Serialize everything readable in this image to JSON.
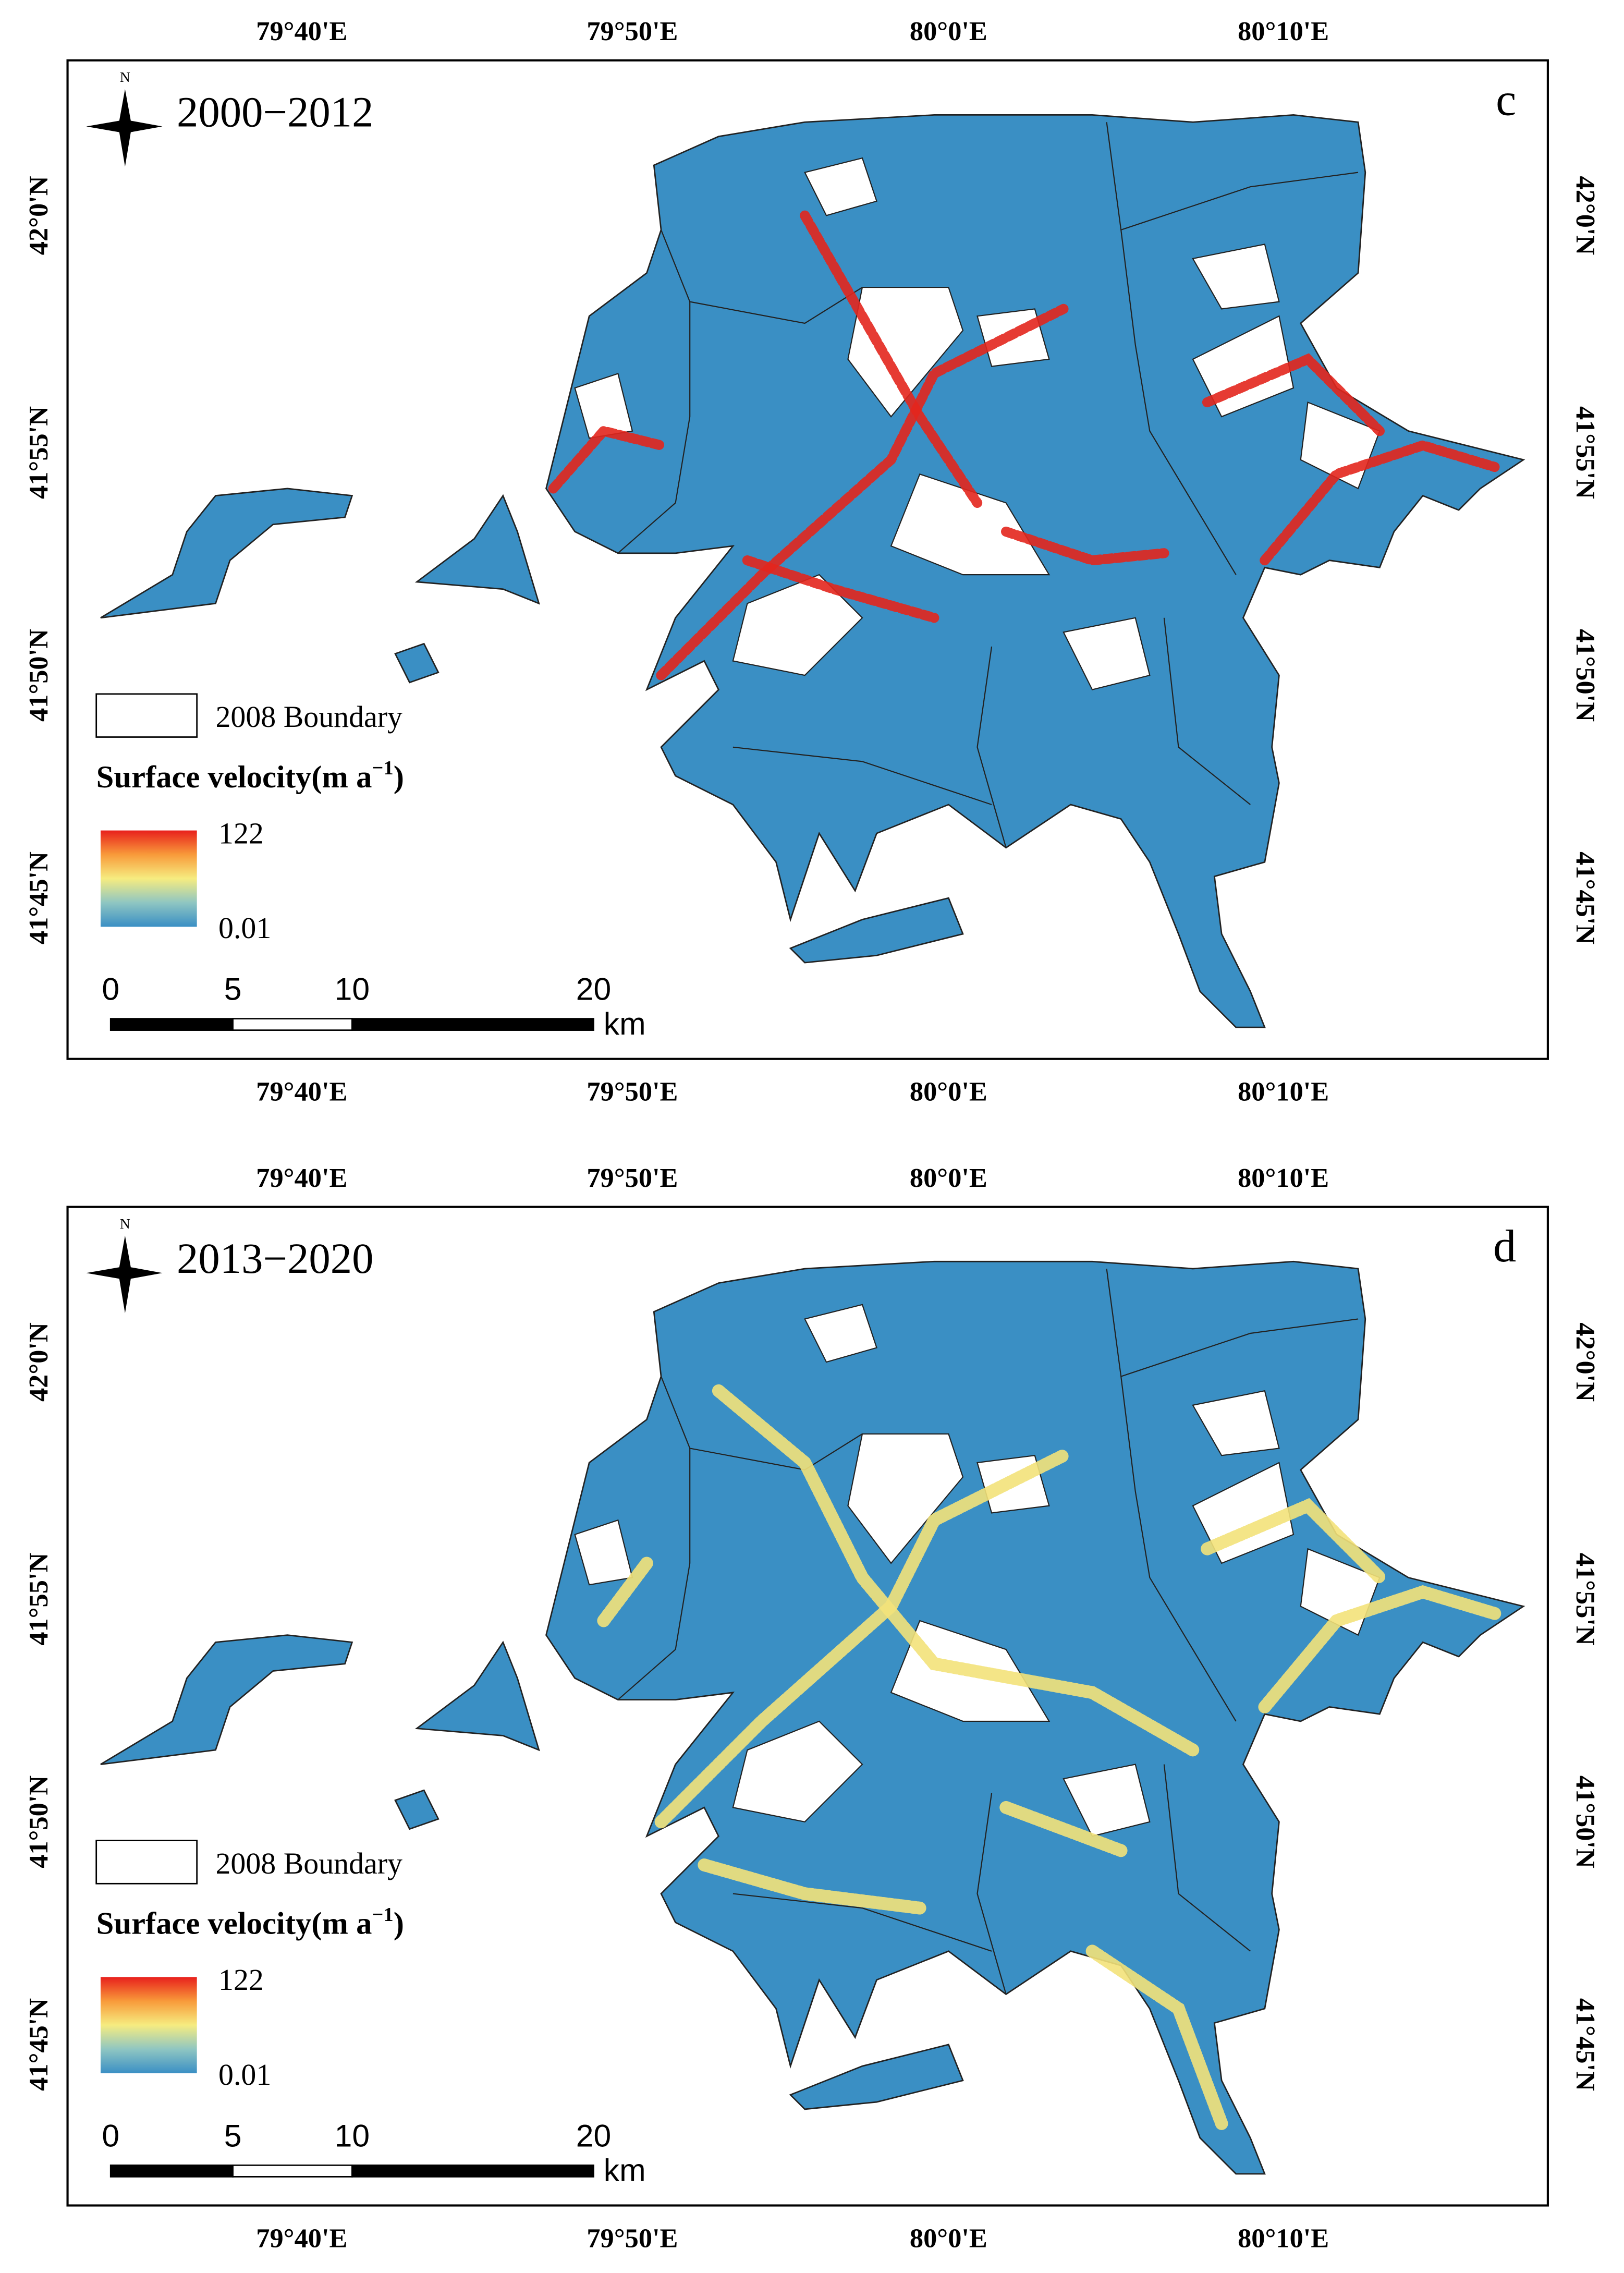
{
  "panels": [
    {
      "label": "c",
      "period": "2000−2012",
      "north": "N",
      "legend": {
        "boundary": "2008 Boundary",
        "title": "Surface velocity(m a",
        "title_sup": "−1",
        "title_close": ")",
        "max": "122",
        "min": "0.01"
      },
      "scale": {
        "ticks": [
          "0",
          "5",
          "10",
          "20"
        ],
        "unit": "km"
      },
      "lon_top": [
        "79°40'E",
        "79°50'E",
        "80°0'E",
        "80°10'E"
      ],
      "lon_bottom": [
        "79°40'E",
        "79°50'E",
        "80°0'E",
        "80°10'E"
      ],
      "lat_left": [
        "42°0'N",
        "41°55'N",
        "41°50'N",
        "41°45'N"
      ],
      "lat_right": [
        "42°0'N",
        "41°55'N",
        "41°50'N",
        "41°45'N"
      ]
    },
    {
      "label": "d",
      "period": "2013−2020",
      "north": "N",
      "legend": {
        "boundary": "2008 Boundary",
        "title": "Surface velocity(m a",
        "title_sup": "−1",
        "title_close": ")",
        "max": "122",
        "min": "0.01"
      },
      "scale": {
        "ticks": [
          "0",
          "5",
          "10",
          "20"
        ],
        "unit": "km"
      },
      "lon_top": [
        "79°40'E",
        "79°50'E",
        "80°0'E",
        "80°10'E"
      ],
      "lon_bottom": [
        "79°40'E",
        "79°50'E",
        "80°0'E",
        "80°10'E"
      ],
      "lat_left": [
        "42°0'N",
        "41°55'N",
        "41°50'N",
        "41°45'N"
      ],
      "lat_right": [
        "42°0'N",
        "41°55'N",
        "41°50'N",
        "41°45'N"
      ]
    }
  ]
}
